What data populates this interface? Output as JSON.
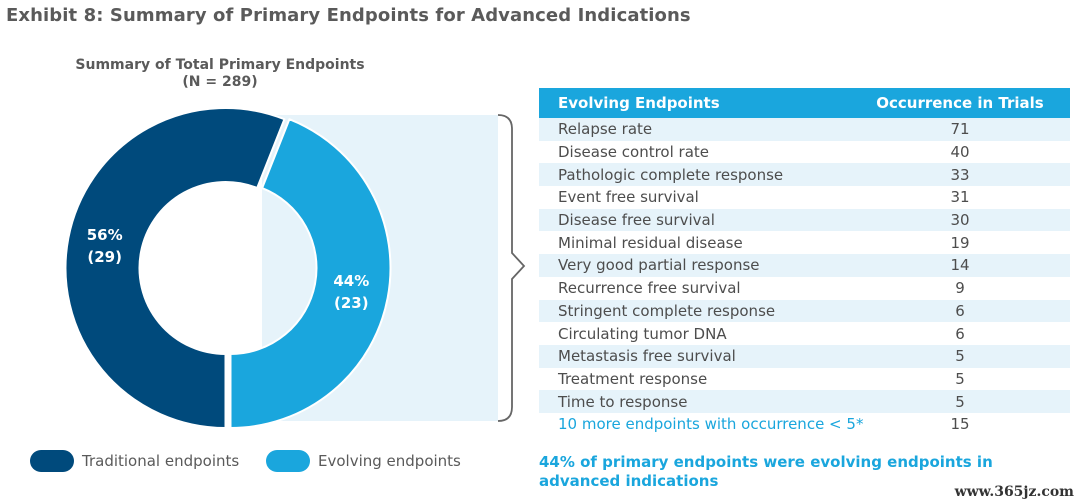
{
  "exhibit_title": "Exhibit 8: Summary of Primary Endpoints for Advanced Indications",
  "chart_data": [
    {
      "type": "pie",
      "title": "Summary of Total Primary Endpoints",
      "subtitle": "(N = 289)",
      "donut": true,
      "slices": [
        {
          "name": "Traditional endpoints",
          "percent": 56,
          "label_pct": "56%",
          "label_count": "(29)",
          "color": "#004a7c"
        },
        {
          "name": "Evolving endpoints",
          "percent": 44,
          "label_pct": "44%",
          "label_count": "(23)",
          "color": "#1aa6dd"
        }
      ]
    },
    {
      "type": "table",
      "columns": [
        "Evolving Endpoints",
        "Occurrence in Trials"
      ],
      "rows": [
        {
          "endpoint": "Relapse rate",
          "occurrence": "71"
        },
        {
          "endpoint": "Disease control rate",
          "occurrence": "40"
        },
        {
          "endpoint": "Pathologic complete response",
          "occurrence": "33"
        },
        {
          "endpoint": "Event free survival",
          "occurrence": "31"
        },
        {
          "endpoint": "Disease free survival",
          "occurrence": "30"
        },
        {
          "endpoint": "Minimal residual disease",
          "occurrence": "19"
        },
        {
          "endpoint": "Very good partial response",
          "occurrence": "14"
        },
        {
          "endpoint": "Recurrence free survival",
          "occurrence": "9"
        },
        {
          "endpoint": "Stringent complete response",
          "occurrence": "6"
        },
        {
          "endpoint": "Circulating tumor DNA",
          "occurrence": "6"
        },
        {
          "endpoint": "Metastasis free survival",
          "occurrence": "5"
        },
        {
          "endpoint": "Treatment response",
          "occurrence": "5"
        },
        {
          "endpoint": "Time to response",
          "occurrence": "5"
        },
        {
          "endpoint": "10 more endpoints with occurrence < 5*",
          "occurrence": "15"
        }
      ]
    }
  ],
  "legend": [
    {
      "label": "Traditional endpoints",
      "color": "#004a7c"
    },
    {
      "label": "Evolving endpoints",
      "color": "#1aa6dd"
    }
  ],
  "footnote": "44% of primary endpoints were evolving endpoints in advanced indications",
  "watermark": "www.365jz.com",
  "colors": {
    "highlight_bg": "#e6f3fa",
    "bracket": "#666666",
    "header_bg": "#1aa6dd"
  }
}
